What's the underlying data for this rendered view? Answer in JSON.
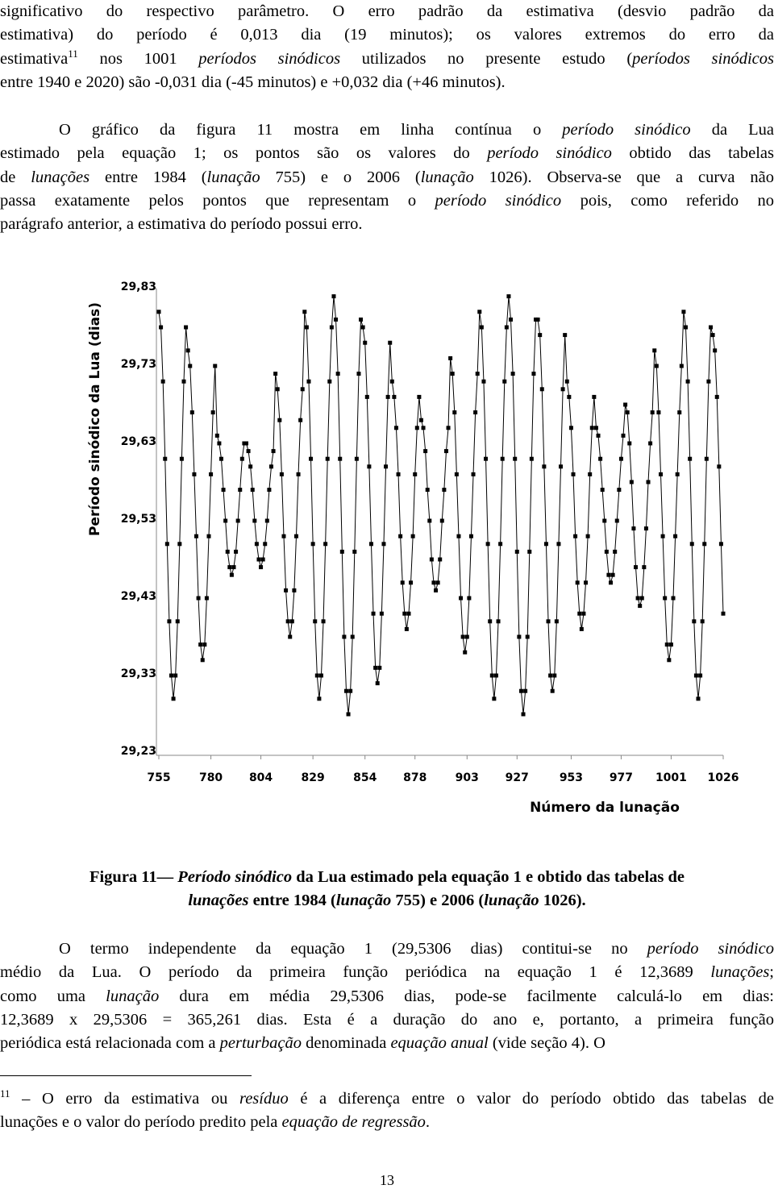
{
  "paragraphs": [
    {
      "lines": [
        [
          "significativo do respectivo parâmetro. O erro padrão da estimativa (desvio padrão da"
        ],
        [
          "estimativa) do período é 0,013 dia (19 minutos); os valores extremos do erro da"
        ],
        [
          "estimativa",
          {
            "text": "11",
            "style": "superscript"
          },
          " nos 1001 ",
          {
            "text": "períodos sinódicos",
            "style": "italic"
          },
          " utilizados no presente estudo (",
          {
            "text": "períodos sinódicos",
            "style": "italic"
          }
        ],
        [
          "entre 1940 e 2020) são -0,031 dia (-45 minutos) e +0,032 dia (+46 minutos)."
        ]
      ]
    },
    {
      "lines": [
        [
          "O gráfico da figura 11 mostra em linha contínua o ",
          {
            "text": "período sinódico",
            "style": "italic"
          },
          " da Lua"
        ],
        [
          "estimado pela equação 1; os pontos são os valores do ",
          {
            "text": "período sinódico",
            "style": "italic"
          },
          " obtido das tabelas"
        ],
        [
          "de ",
          {
            "text": "lunações",
            "style": "italic"
          },
          " entre 1984 (",
          {
            "text": "lunação",
            "style": "italic"
          },
          " 755) e o 2006 (",
          {
            "text": "lunação",
            "style": "italic"
          },
          " 1026). Observa-se que a curva não"
        ],
        [
          "passa exatamente pelos pontos que representam o ",
          {
            "text": "período sinódico",
            "style": "italic"
          },
          " pois, como referido no"
        ],
        [
          "parágrafo anterior, a estimativa do período possui erro."
        ]
      ]
    },
    {
      "lines": [
        [
          "O termo independente da equação 1 (29,5306 dias) contitui-se no ",
          {
            "text": "período sinódico",
            "style": "italic"
          }
        ],
        [
          "médio da Lua. O período da primeira função periódica na equação 1 é 12,3689 ",
          {
            "text": "lunações",
            "style": "italic"
          },
          ";"
        ],
        [
          "como uma ",
          {
            "text": "lunação",
            "style": "italic"
          },
          " dura em média 29,5306 dias, pode-se facilmente calculá-lo em dias:"
        ],
        [
          "12,3689 x 29,5306 = 365,261 dias. Esta é a duração do ano e, portanto, a primeira função"
        ],
        [
          "periódica está relacionada com a ",
          {
            "text": "perturbação",
            "style": "italic"
          },
          " denominada ",
          {
            "text": "equação anual",
            "style": "italic"
          },
          " (vide seção 4). O"
        ]
      ]
    }
  ],
  "caption": {
    "lines": [
      [
        "Figura 11— ",
        {
          "text": "Período sinódico",
          "style": "italic"
        },
        " da Lua estimado pela equação 1 e obtido das tabelas de"
      ],
      [
        {
          "text": "lunações",
          "style": "italic"
        },
        " entre 1984 (",
        {
          "text": "lunação",
          "style": "italic"
        },
        " 755) e 2006 (",
        {
          "text": "lunação",
          "style": "italic"
        },
        " 1026)."
      ]
    ]
  },
  "footnote": {
    "lines": [
      [
        {
          "text": "11",
          "style": "superscript"
        },
        " – O erro da estimativa ou ",
        {
          "text": "resíduo",
          "style": "italic"
        },
        " é a diferença entre o valor do período obtido das tabelas de"
      ],
      [
        "lunações e o valor  do período predito pela ",
        {
          "text": "equação de regressão",
          "style": "italic"
        },
        "."
      ]
    ]
  },
  "page_number": "13",
  "chart_data": {
    "type": "line",
    "x_label": "Número da lunação",
    "y_label": "Período sinódico da Lua (dias)",
    "xlim": [
      755,
      1026
    ],
    "xticks": [
      755,
      780,
      804,
      829,
      854,
      878,
      903,
      927,
      953,
      977,
      1001,
      1026
    ],
    "ylim": [
      29.23,
      29.83
    ],
    "yticks": [
      {
        "value": 29.23,
        "label": "29,23"
      },
      {
        "value": 29.33,
        "label": "29,33"
      },
      {
        "value": 29.43,
        "label": "29,43"
      },
      {
        "value": 29.53,
        "label": "29,53"
      },
      {
        "value": 29.63,
        "label": "29,63"
      },
      {
        "value": 29.73,
        "label": "29,73"
      },
      {
        "value": 29.83,
        "label": "29,83"
      }
    ],
    "x": [
      755,
      756,
      757,
      758,
      759,
      760,
      761,
      762,
      763,
      764,
      765,
      766,
      767,
      768,
      769,
      770,
      771,
      772,
      773,
      774,
      775,
      776,
      777,
      778,
      779,
      780,
      781,
      782,
      783,
      784,
      785,
      786,
      787,
      788,
      789,
      790,
      791,
      792,
      793,
      794,
      795,
      796,
      797,
      798,
      799,
      800,
      801,
      802,
      803,
      804,
      805,
      806,
      807,
      808,
      809,
      810,
      811,
      812,
      813,
      814,
      815,
      816,
      817,
      818,
      819,
      820,
      821,
      822,
      823,
      824,
      825,
      826,
      827,
      828,
      829,
      830,
      831,
      832,
      833,
      834,
      835,
      836,
      837,
      838,
      839,
      840,
      841,
      842,
      843,
      844,
      845,
      846,
      847,
      848,
      849,
      850,
      851,
      852,
      853,
      854,
      855,
      856,
      857,
      858,
      859,
      860,
      861,
      862,
      863,
      864,
      865,
      866,
      867,
      868,
      869,
      870,
      871,
      872,
      873,
      874,
      875,
      876,
      877,
      878,
      879,
      880,
      881,
      882,
      883,
      884,
      885,
      886,
      887,
      888,
      889,
      890,
      891,
      892,
      893,
      894,
      895,
      896,
      897,
      898,
      899,
      900,
      901,
      902,
      903,
      904,
      905,
      906,
      907,
      908,
      909,
      910,
      911,
      912,
      913,
      914,
      915,
      916,
      917,
      918,
      919,
      920,
      921,
      922,
      923,
      924,
      925,
      926,
      927,
      928,
      929,
      930,
      931,
      932,
      933,
      934,
      935,
      936,
      937,
      938,
      939,
      940,
      941,
      942,
      943,
      944,
      945,
      946,
      947,
      948,
      949,
      950,
      951,
      952,
      953,
      954,
      955,
      956,
      957,
      958,
      959,
      960,
      961,
      962,
      963,
      964,
      965,
      966,
      967,
      968,
      969,
      970,
      971,
      972,
      973,
      974,
      975,
      976,
      977,
      978,
      979,
      980,
      981,
      982,
      983,
      984,
      985,
      986,
      987,
      988,
      989,
      990,
      991,
      992,
      993,
      994,
      995,
      996,
      997,
      998,
      999,
      1000,
      1001,
      1002,
      1003,
      1004,
      1005,
      1006,
      1007,
      1008,
      1009,
      1010,
      1011,
      1012,
      1013,
      1014,
      1015,
      1016,
      1017,
      1018,
      1019,
      1020,
      1021,
      1022,
      1023,
      1024,
      1025,
      1026
    ],
    "series": [
      {
        "color": "#000000",
        "values": [
          29.8,
          29.78,
          29.71,
          29.61,
          29.5,
          29.4,
          29.33,
          29.3,
          29.33,
          29.4,
          29.5,
          29.61,
          29.71,
          29.78,
          29.75,
          29.73,
          29.67,
          29.59,
          29.51,
          29.43,
          29.37,
          29.35,
          29.37,
          29.43,
          29.51,
          29.59,
          29.67,
          29.73,
          29.64,
          29.63,
          29.61,
          29.57,
          29.53,
          29.49,
          29.47,
          29.46,
          29.47,
          29.49,
          29.53,
          29.57,
          29.61,
          29.63,
          29.63,
          29.62,
          29.6,
          29.57,
          29.53,
          29.5,
          29.48,
          29.47,
          29.48,
          29.5,
          29.53,
          29.57,
          29.6,
          29.62,
          29.72,
          29.7,
          29.66,
          29.59,
          29.51,
          29.44,
          29.4,
          29.38,
          29.4,
          29.44,
          29.51,
          29.59,
          29.66,
          29.7,
          29.8,
          29.78,
          29.71,
          29.61,
          29.5,
          29.4,
          29.33,
          29.3,
          29.33,
          29.4,
          29.5,
          29.61,
          29.71,
          29.78,
          29.82,
          29.79,
          29.72,
          29.61,
          29.49,
          29.38,
          29.31,
          29.28,
          29.31,
          29.38,
          29.49,
          29.61,
          29.72,
          29.79,
          29.78,
          29.76,
          29.69,
          29.6,
          29.5,
          29.41,
          29.34,
          29.32,
          29.34,
          29.41,
          29.5,
          29.6,
          29.69,
          29.76,
          29.71,
          29.69,
          29.65,
          29.59,
          29.51,
          29.45,
          29.41,
          29.39,
          29.41,
          29.45,
          29.51,
          29.59,
          29.65,
          29.69,
          29.66,
          29.65,
          29.62,
          29.57,
          29.53,
          29.48,
          29.45,
          29.44,
          29.45,
          29.48,
          29.53,
          29.57,
          29.62,
          29.65,
          29.74,
          29.72,
          29.67,
          29.59,
          29.51,
          29.43,
          29.38,
          29.36,
          29.38,
          29.43,
          29.51,
          29.59,
          29.67,
          29.72,
          29.8,
          29.78,
          29.71,
          29.61,
          29.5,
          29.4,
          29.33,
          29.3,
          29.33,
          29.4,
          29.5,
          29.61,
          29.71,
          29.78,
          29.82,
          29.79,
          29.72,
          29.61,
          29.49,
          29.38,
          29.31,
          29.28,
          29.31,
          29.38,
          29.49,
          29.61,
          29.72,
          29.79,
          29.79,
          29.77,
          29.7,
          29.6,
          29.5,
          29.4,
          29.33,
          29.31,
          29.33,
          29.4,
          29.5,
          29.6,
          29.7,
          29.77,
          29.71,
          29.69,
          29.65,
          29.59,
          29.51,
          29.45,
          29.41,
          29.39,
          29.41,
          29.45,
          29.51,
          29.59,
          29.65,
          29.69,
          29.65,
          29.64,
          29.61,
          29.57,
          29.53,
          29.49,
          29.46,
          29.45,
          29.46,
          29.49,
          29.53,
          29.57,
          29.61,
          29.64,
          29.68,
          29.67,
          29.63,
          29.58,
          29.52,
          29.47,
          29.43,
          29.42,
          29.43,
          29.47,
          29.52,
          29.58,
          29.63,
          29.67,
          29.75,
          29.73,
          29.67,
          29.59,
          29.51,
          29.43,
          29.37,
          29.35,
          29.37,
          29.43,
          29.51,
          29.59,
          29.67,
          29.73,
          29.8,
          29.78,
          29.71,
          29.61,
          29.5,
          29.4,
          29.33,
          29.3,
          29.33,
          29.4,
          29.5,
          29.61,
          29.71,
          29.78,
          29.77,
          29.75,
          29.69,
          29.6,
          29.5,
          29.41
        ]
      }
    ]
  }
}
